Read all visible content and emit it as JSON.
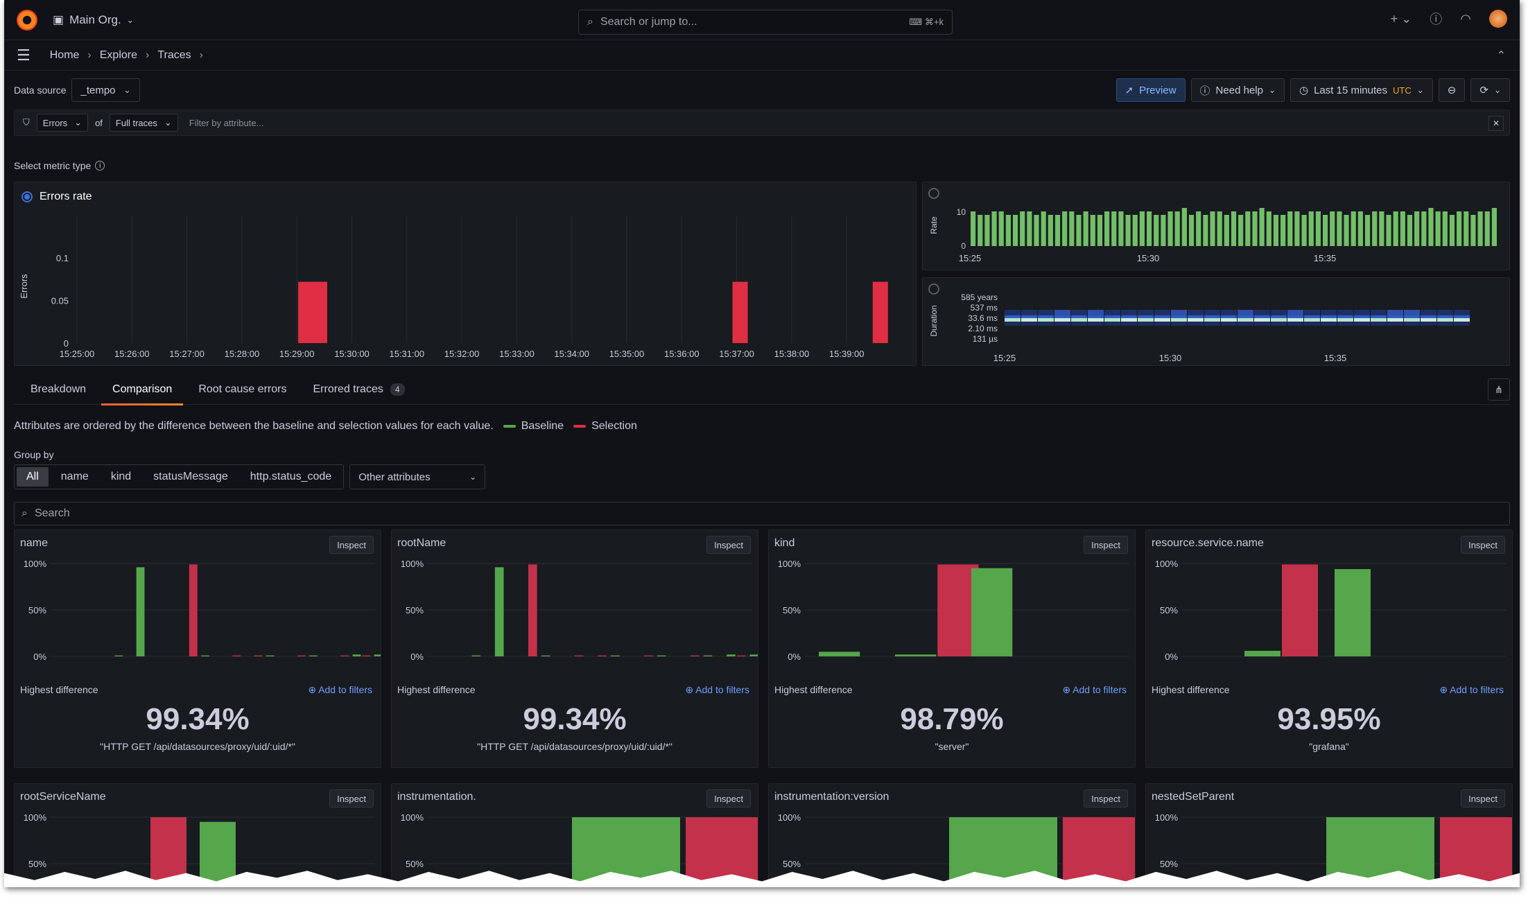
{
  "topbar": {
    "org": "Main Org.",
    "search_placeholder": "Search or jump to...",
    "shortcut": "⌘+k"
  },
  "breadcrumbs": [
    "Home",
    "Explore",
    "Traces"
  ],
  "toolbar": {
    "datasource_label": "Data source",
    "datasource_value": "_tempo",
    "preview": "Preview",
    "need_help": "Need help",
    "time_range": "Last 15 minutes",
    "timezone": "UTC"
  },
  "filter": {
    "type": "Errors",
    "of": "of",
    "scope": "Full traces",
    "placeholder": "Filter by attribute..."
  },
  "metric": {
    "label": "Select metric type",
    "errors_rate": "Errors rate"
  },
  "colors": {
    "baseline": "#56a64b",
    "selection": "#c4314b",
    "bg": "#111217",
    "panel": "#181b1f"
  },
  "chart_data": [
    {
      "type": "bar",
      "title": "Errors rate",
      "ylabel": "Errors",
      "yticks": [
        "0",
        "0.05",
        "0.1"
      ],
      "ylim": [
        0,
        0.14
      ],
      "x": [
        "15:25:00",
        "15:26:00",
        "15:27:00",
        "15:28:00",
        "15:29:00",
        "15:30:00",
        "15:31:00",
        "15:32:00",
        "15:33:00",
        "15:34:00",
        "15:35:00",
        "15:36:00",
        "15:37:00",
        "15:38:00",
        "15:39:00"
      ],
      "bars": [
        {
          "x": 4.15,
          "value": 0.072
        },
        {
          "x": 4.4,
          "value": 0.072
        },
        {
          "x": 12.05,
          "value": 0.072
        },
        {
          "x": 14.6,
          "value": 0.072
        }
      ]
    },
    {
      "type": "bar",
      "ylabel": "Rate",
      "yticks": [
        "0",
        "10"
      ],
      "ylim": [
        0,
        12
      ],
      "xticks": [
        "15:25",
        "15:30",
        "15:35"
      ],
      "values": [
        10,
        9,
        9,
        10,
        10,
        9,
        9,
        10,
        10,
        9,
        10,
        9,
        9,
        10,
        10,
        9,
        10,
        9,
        9,
        10,
        10,
        10,
        9,
        9,
        10,
        10,
        9,
        9,
        10,
        10,
        11,
        9,
        10,
        9,
        10,
        10,
        9,
        10,
        9,
        10,
        10,
        11,
        10,
        9,
        9,
        10,
        10,
        9,
        10,
        10,
        9,
        10,
        10,
        9,
        10,
        10,
        9,
        10,
        10,
        9,
        10,
        10,
        9,
        10,
        10,
        11,
        10,
        10,
        9,
        10,
        10,
        9,
        10,
        10,
        11
      ]
    },
    {
      "type": "heatmap",
      "ylabel": "Duration",
      "yticks": [
        "585 years",
        "537 ms",
        "33.6 ms",
        "2.10 ms",
        "131 µs"
      ],
      "xticks": [
        "15:25",
        "15:30",
        "15:35"
      ]
    }
  ],
  "tabs": [
    {
      "label": "Breakdown"
    },
    {
      "label": "Comparison"
    },
    {
      "label": "Root cause errors"
    },
    {
      "label": "Errored traces",
      "count": "4"
    }
  ],
  "comparison": {
    "description": "Attributes are ordered by the difference between the baseline and selection values for each value.",
    "baseline": "Baseline",
    "selection": "Selection"
  },
  "groupby": {
    "label": "Group by",
    "options": [
      "All",
      "name",
      "kind",
      "statusMessage",
      "http.status_code"
    ],
    "other": "Other attributes"
  },
  "search_placeholder": "Search",
  "labels": {
    "inspect": "Inspect",
    "highest_difference": "Highest difference",
    "add_to_filters": "Add to filters"
  },
  "cards": [
    {
      "title": "name",
      "value": "99.34%",
      "sub": "\"HTTP GET /api/datasources/proxy/uid/:uid/*\"",
      "bars": [
        [
          0,
          0
        ],
        [
          0,
          0
        ],
        [
          1,
          0
        ],
        [
          96,
          0
        ],
        [
          0,
          0
        ],
        [
          0,
          99
        ],
        [
          1,
          0
        ],
        [
          0,
          1
        ],
        [
          0,
          1
        ],
        [
          1,
          0
        ],
        [
          0,
          1
        ],
        [
          1,
          0
        ],
        [
          0,
          1
        ],
        [
          2,
          1
        ],
        [
          2,
          1
        ]
      ]
    },
    {
      "title": "rootName",
      "value": "99.34%",
      "sub": "\"HTTP GET /api/datasources/proxy/uid/:uid/*\"",
      "bars": [
        [
          0,
          0
        ],
        [
          1,
          0
        ],
        [
          96,
          0
        ],
        [
          0,
          99
        ],
        [
          1,
          0
        ],
        [
          0,
          1
        ],
        [
          0,
          1
        ],
        [
          1,
          0
        ],
        [
          0,
          1
        ],
        [
          1,
          0
        ],
        [
          0,
          1
        ],
        [
          1,
          0
        ],
        [
          2,
          1
        ],
        [
          2,
          1
        ]
      ]
    },
    {
      "title": "kind",
      "value": "98.79%",
      "sub": "\"server\"",
      "bars": [
        [
          5,
          0
        ],
        [
          2,
          99
        ],
        [
          95,
          0
        ]
      ]
    },
    {
      "title": "resource.service.name",
      "value": "93.95%",
      "sub": "\"grafana\"",
      "bars": [
        [
          6,
          99
        ],
        [
          94,
          0
        ]
      ]
    },
    {
      "title": "rootServiceName",
      "bars": [
        [
          0,
          100
        ],
        [
          95,
          0
        ]
      ]
    },
    {
      "title": "instrumentation.",
      "bars": [
        [
          100,
          100
        ]
      ]
    },
    {
      "title": "instrumentation:version",
      "bars": [
        [
          100,
          100
        ]
      ]
    },
    {
      "title": "nestedSetParent",
      "bars": [
        [
          100,
          100
        ]
      ]
    }
  ],
  "axis": {
    "y100": "100%",
    "y50": "50%",
    "y0": "0%"
  }
}
